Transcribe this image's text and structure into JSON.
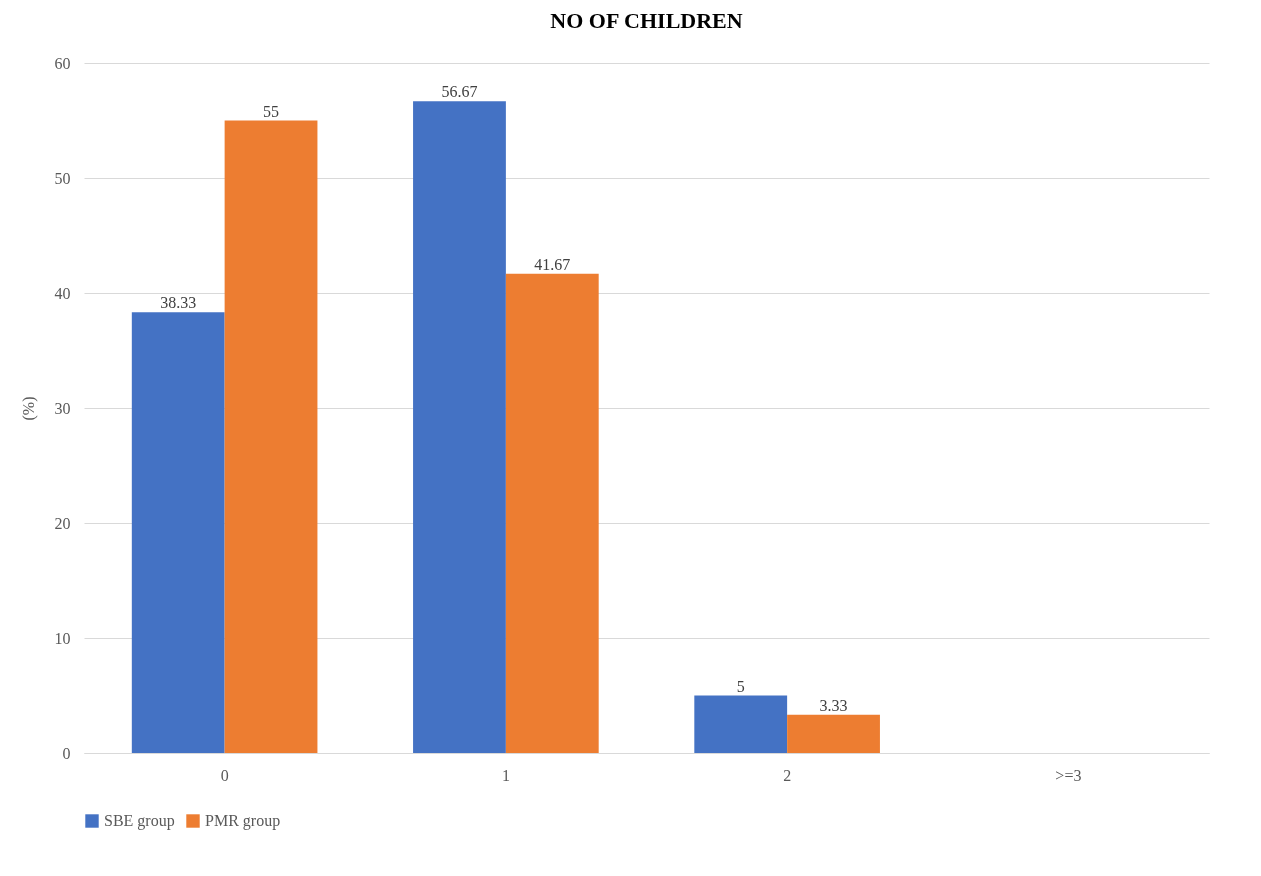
{
  "chart_data": {
    "type": "bar",
    "title": "NO OF CHILDREN",
    "ylabel": "(%)",
    "categories": [
      "0",
      "1",
      "2",
      ">=3"
    ],
    "series": [
      {
        "name": "SBE group",
        "color": "#4472c4",
        "values": [
          38.33,
          56.67,
          5,
          null
        ]
      },
      {
        "name": "PMR group",
        "color": "#ed7d31",
        "values": [
          55,
          41.67,
          3.33,
          null
        ]
      }
    ],
    "ylim": [
      0,
      60
    ],
    "yticks": [
      0,
      10,
      20,
      30,
      40,
      50,
      60
    ],
    "grid": "y",
    "legend": "bottom",
    "data_labels": true
  }
}
